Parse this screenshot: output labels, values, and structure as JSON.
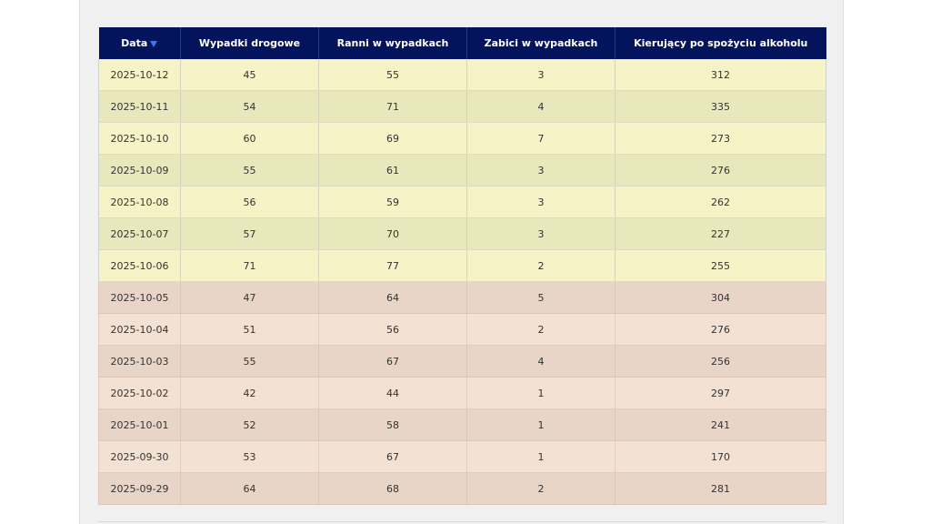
{
  "colors": {
    "header_bg": "#04145c",
    "header_text": "#ffffff",
    "recent_row_a": "#f6f3c7",
    "recent_row_b": "#e9e8bc",
    "older_row_a": "#f3e1d3",
    "older_row_b": "#e9d5c8"
  },
  "table": {
    "headers": {
      "date": "Data",
      "accidents": "Wypadki drogowe",
      "injured": "Ranni w wypadkach",
      "killed": "Zabici w wypadkach",
      "drunk_drivers": "Kierujący po spożyciu alkoholu"
    },
    "sort_icon": "sort-desc-icon",
    "rows": [
      {
        "date": "2025-10-12",
        "accidents": "45",
        "injured": "55",
        "killed": "3",
        "drunk_drivers": "312"
      },
      {
        "date": "2025-10-11",
        "accidents": "54",
        "injured": "71",
        "killed": "4",
        "drunk_drivers": "335"
      },
      {
        "date": "2025-10-10",
        "accidents": "60",
        "injured": "69",
        "killed": "7",
        "drunk_drivers": "273"
      },
      {
        "date": "2025-10-09",
        "accidents": "55",
        "injured": "61",
        "killed": "3",
        "drunk_drivers": "276"
      },
      {
        "date": "2025-10-08",
        "accidents": "56",
        "injured": "59",
        "killed": "3",
        "drunk_drivers": "262"
      },
      {
        "date": "2025-10-07",
        "accidents": "57",
        "injured": "70",
        "killed": "3",
        "drunk_drivers": "227"
      },
      {
        "date": "2025-10-06",
        "accidents": "71",
        "injured": "77",
        "killed": "2",
        "drunk_drivers": "255"
      },
      {
        "date": "2025-10-05",
        "accidents": "47",
        "injured": "64",
        "killed": "5",
        "drunk_drivers": "304"
      },
      {
        "date": "2025-10-04",
        "accidents": "51",
        "injured": "56",
        "killed": "2",
        "drunk_drivers": "276"
      },
      {
        "date": "2025-10-03",
        "accidents": "55",
        "injured": "67",
        "killed": "4",
        "drunk_drivers": "256"
      },
      {
        "date": "2025-10-02",
        "accidents": "42",
        "injured": "44",
        "killed": "1",
        "drunk_drivers": "297"
      },
      {
        "date": "2025-10-01",
        "accidents": "52",
        "injured": "58",
        "killed": "1",
        "drunk_drivers": "241"
      },
      {
        "date": "2025-09-30",
        "accidents": "53",
        "injured": "67",
        "killed": "1",
        "drunk_drivers": "170"
      },
      {
        "date": "2025-09-29",
        "accidents": "64",
        "injured": "68",
        "killed": "2",
        "drunk_drivers": "281"
      }
    ]
  }
}
